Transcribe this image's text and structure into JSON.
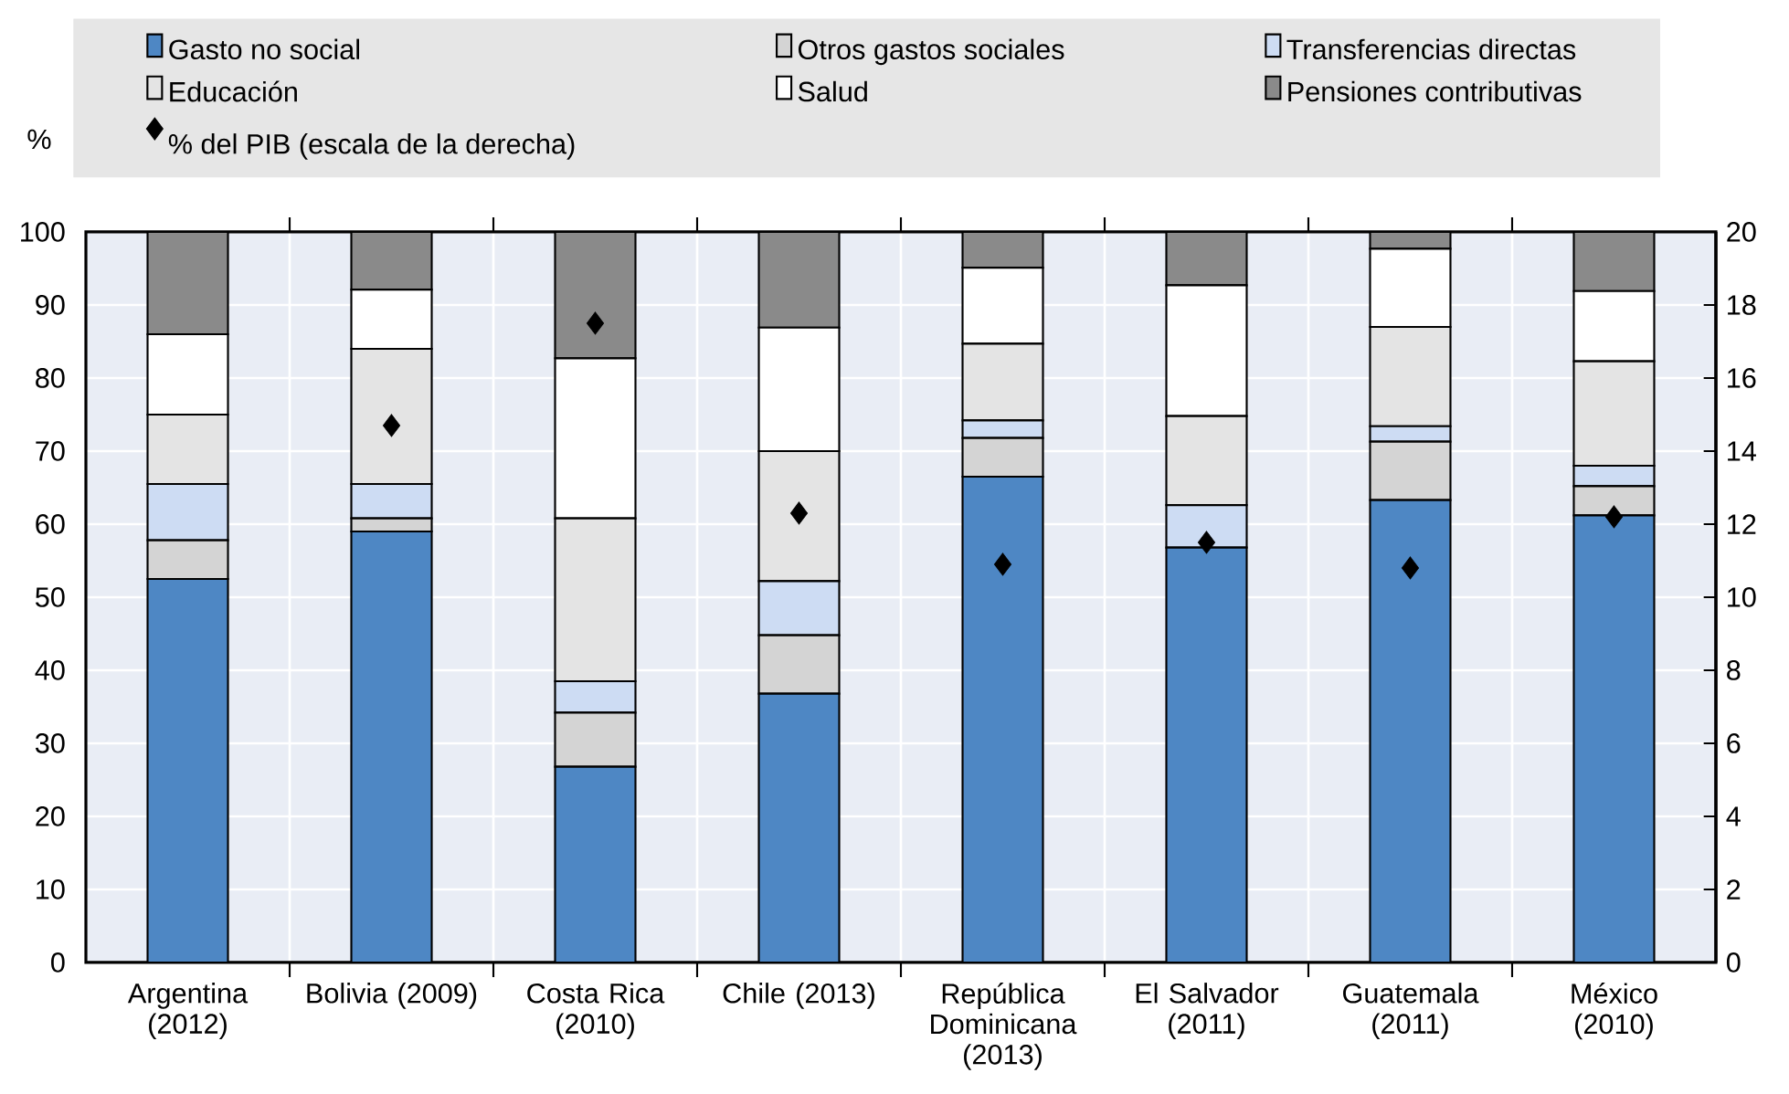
{
  "chart_data": {
    "type": "bar",
    "stacked": true,
    "ylabel": "%",
    "categories": [
      "Argentina (2012)",
      "Bolivia (2009)",
      "Costa Rica (2010)",
      "Chile (2013)",
      "República Dominicana (2013)",
      "El Salvador (2011)",
      "Guatemala (2011)",
      "México (2010)"
    ],
    "series": [
      {
        "name": "Gasto no social",
        "color": "#4e87c4",
        "values": [
          52.5,
          59,
          26.8,
          36.8,
          66.5,
          56.8,
          63.3,
          61.2
        ]
      },
      {
        "name": "Otros gastos sociales",
        "color": "#d4d4d4",
        "values": [
          5.3,
          1.8,
          7.4,
          8,
          5.3,
          0,
          8,
          4
        ]
      },
      {
        "name": "Transferencias directas",
        "color": "#cddcf3",
        "values": [
          7.7,
          4.7,
          4.3,
          7.4,
          2.4,
          5.8,
          2.1,
          2.8
        ]
      },
      {
        "name": "Educación",
        "color": "#e4e4e4",
        "values": [
          9.5,
          18.5,
          22.3,
          17.8,
          10.5,
          12.2,
          13.6,
          14.3
        ]
      },
      {
        "name": "Salud",
        "color": "#ffffff",
        "values": [
          11,
          8.1,
          21.9,
          16.9,
          10.4,
          17.9,
          10.7,
          9.6
        ]
      },
      {
        "name": "Pensiones contributivas",
        "color": "#8a8a8a",
        "values": [
          14,
          7.9,
          17.3,
          13.1,
          4.9,
          7.3,
          2.3,
          8.1
        ]
      },
      {
        "name": "% del PIB (escala de la derecha)",
        "type": "scatter",
        "axis": "y2",
        "marker": "diamond",
        "color": "#000000",
        "values": [
          null,
          14.7,
          17.5,
          12.3,
          10.9,
          11.5,
          10.8,
          12.2
        ]
      }
    ],
    "ylim": [
      0,
      100
    ],
    "yticks": [
      0,
      10,
      20,
      30,
      40,
      50,
      60,
      70,
      80,
      90,
      100
    ],
    "y2lim": [
      0,
      20
    ],
    "y2ticks": [
      0,
      2,
      4,
      6,
      8,
      10,
      12,
      14,
      16,
      18,
      20
    ],
    "grid": true,
    "legend": "top"
  }
}
